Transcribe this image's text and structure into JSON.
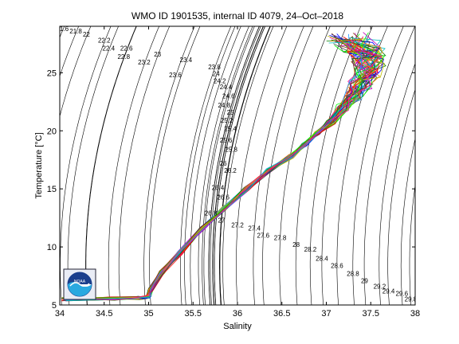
{
  "chart_data": {
    "type": "scatter",
    "title": "WMO ID 1901535, internal ID 4079, 24–Oct–2018",
    "xlabel": "Salinity",
    "ylabel": "Temperature [°C]",
    "xlim": [
      34,
      38
    ],
    "ylim": [
      5,
      29
    ],
    "xticks": [
      "34",
      "34.5",
      "35",
      "35.5",
      "36",
      "36.5",
      "37",
      "37.5",
      "38"
    ],
    "yticks": [
      "5",
      "10",
      "15",
      "20",
      "25"
    ],
    "grid": false,
    "legend": "none",
    "isopycnal_labels": [
      {
        "label": "21.6",
        "s": 34.03,
        "t": 28.6
      },
      {
        "label": "21.8",
        "s": 34.18,
        "t": 28.4
      },
      {
        "label": "22",
        "s": 34.3,
        "t": 28.1
      },
      {
        "label": "22.2",
        "s": 34.5,
        "t": 27.6
      },
      {
        "label": "22.4",
        "s": 34.55,
        "t": 26.9
      },
      {
        "label": "22.6",
        "s": 34.75,
        "t": 26.9
      },
      {
        "label": "22.8",
        "s": 34.72,
        "t": 26.2
      },
      {
        "label": "23",
        "s": 35.1,
        "t": 26.4
      },
      {
        "label": "23.2",
        "s": 34.95,
        "t": 25.7
      },
      {
        "label": "23.4",
        "s": 35.42,
        "t": 25.9
      },
      {
        "label": "23.6",
        "s": 35.3,
        "t": 24.6
      },
      {
        "label": "23.8",
        "s": 35.74,
        "t": 25.3
      },
      {
        "label": "24",
        "s": 35.76,
        "t": 24.7
      },
      {
        "label": "24.2",
        "s": 35.8,
        "t": 24.1
      },
      {
        "label": "24.4",
        "s": 35.87,
        "t": 23.6
      },
      {
        "label": "24.6",
        "s": 35.9,
        "t": 22.8
      },
      {
        "label": "24.8",
        "s": 35.85,
        "t": 22.0
      },
      {
        "label": "25",
        "s": 35.92,
        "t": 21.4
      },
      {
        "label": "25.2",
        "s": 35.88,
        "t": 20.7
      },
      {
        "label": "25.4",
        "s": 35.92,
        "t": 20.0
      },
      {
        "label": "25.6",
        "s": 35.87,
        "t": 19.0
      },
      {
        "label": "25.8",
        "s": 35.93,
        "t": 18.2
      },
      {
        "label": "26",
        "s": 35.84,
        "t": 17.0
      },
      {
        "label": "26.2",
        "s": 35.92,
        "t": 16.4
      },
      {
        "label": "26.4",
        "s": 35.78,
        "t": 14.9
      },
      {
        "label": "26.6",
        "s": 35.84,
        "t": 14.1
      },
      {
        "label": "26.8",
        "s": 35.7,
        "t": 12.7
      },
      {
        "label": "27",
        "s": 35.82,
        "t": 12.1
      },
      {
        "label": "27.2",
        "s": 36.0,
        "t": 11.7
      },
      {
        "label": "27.4",
        "s": 36.19,
        "t": 11.4
      },
      {
        "label": "27.6",
        "s": 36.29,
        "t": 10.8
      },
      {
        "label": "27.8",
        "s": 36.48,
        "t": 10.6
      },
      {
        "label": "28",
        "s": 36.66,
        "t": 10.0
      },
      {
        "label": "28.2",
        "s": 36.82,
        "t": 9.6
      },
      {
        "label": "28.4",
        "s": 36.95,
        "t": 8.8
      },
      {
        "label": "28.6",
        "s": 37.12,
        "t": 8.2
      },
      {
        "label": "28.8",
        "s": 37.3,
        "t": 7.5
      },
      {
        "label": "29",
        "s": 37.43,
        "t": 6.9
      },
      {
        "label": "29.2",
        "s": 37.6,
        "t": 6.4
      },
      {
        "label": "29.4",
        "s": 37.7,
        "t": 6.0
      },
      {
        "label": "29.6",
        "s": 37.85,
        "t": 5.8
      },
      {
        "label": "29.8",
        "s": 37.95,
        "t": 5.3
      }
    ],
    "series_summary": "Many overlapping colored T-S profiles (one per cycle), all following a common path",
    "profile_path": {
      "s": [
        34.05,
        34.6,
        34.9,
        35.0,
        35.02,
        35.15,
        35.35,
        35.6,
        35.85,
        36.1,
        36.35,
        36.6,
        36.75,
        36.9,
        37.05,
        37.2,
        37.3,
        37.38,
        37.45,
        37.48,
        37.45,
        37.38,
        37.25
      ],
      "t": [
        5.5,
        5.55,
        5.6,
        5.7,
        6.3,
        7.8,
        9.5,
        11.6,
        13.3,
        15.0,
        16.6,
        17.8,
        18.8,
        19.8,
        20.8,
        22.0,
        23.0,
        24.0,
        25.0,
        26.0,
        26.7,
        27.3,
        27.9
      ]
    },
    "series_colors": [
      "#0000ff",
      "#008000",
      "#ff0000",
      "#00bfbf",
      "#bf00bf",
      "#bfbf00",
      "#404040",
      "#ff8c00",
      "#8b4513",
      "#00ff00",
      "#1e90ff",
      "#ff1493"
    ],
    "logo": "NOAA"
  }
}
